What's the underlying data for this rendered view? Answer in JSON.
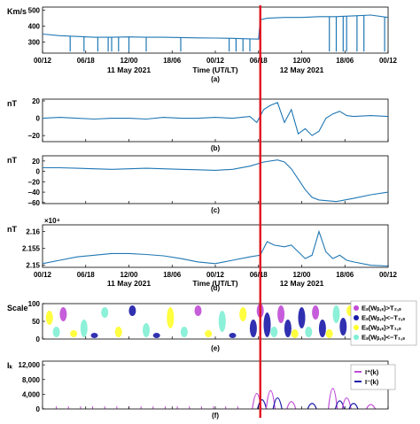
{
  "colors": {
    "line": "#1f77b4",
    "marker": "#e0141e",
    "legend_e1": "#c04bd6",
    "legend_e2": "#1a1aa8",
    "legend_e3": "#ffff2a",
    "legend_e4": "#7ff0d4"
  },
  "x_axis": {
    "time_ticks": [
      "00/12",
      "06/18",
      "12/00",
      "18/06",
      "00/12",
      "06/18",
      "12/00",
      "18/06",
      "00/12"
    ],
    "day_labels": [
      "11 May 2021",
      "12 May 2021"
    ],
    "time_label": "Time (UT/LT)"
  },
  "event_marker": {
    "position_label": "06/18"
  },
  "chart_data": [
    {
      "id": "a",
      "type": "line",
      "caption": "(a)",
      "ylabel": "Km/s",
      "ylim": [
        230,
        520
      ],
      "yticks": [
        "500",
        "400",
        "300"
      ],
      "ytick_values": [
        500,
        400,
        300
      ],
      "x": [
        0,
        0.05,
        0.1,
        0.15,
        0.2,
        0.25,
        0.3,
        0.35,
        0.4,
        0.45,
        0.5,
        0.55,
        0.6,
        0.625,
        0.63,
        0.65,
        0.7,
        0.75,
        0.8,
        0.85,
        0.9,
        0.95,
        1.0
      ],
      "values": [
        350,
        340,
        335,
        330,
        330,
        332,
        330,
        330,
        328,
        326,
        325,
        323,
        320,
        318,
        440,
        450,
        455,
        455,
        460,
        460,
        465,
        470,
        455
      ],
      "gap_drops": [
        0.08,
        0.12,
        0.16,
        0.19,
        0.2,
        0.22,
        0.25,
        0.3,
        0.4,
        0.54,
        0.56,
        0.58,
        0.6,
        0.83,
        0.85,
        0.87,
        0.88,
        0.91,
        0.93,
        0.99
      ],
      "drop_floor": 240
    },
    {
      "id": "b",
      "type": "line",
      "caption": "(b)",
      "ylabel": "nT",
      "ylim": [
        -27,
        22
      ],
      "yticks": [
        "20",
        "0",
        "−20"
      ],
      "ytick_values": [
        20,
        0,
        -20
      ],
      "x": [
        0,
        0.05,
        0.1,
        0.15,
        0.2,
        0.25,
        0.3,
        0.35,
        0.4,
        0.45,
        0.5,
        0.55,
        0.6,
        0.62,
        0.64,
        0.66,
        0.68,
        0.7,
        0.72,
        0.74,
        0.76,
        0.78,
        0.8,
        0.82,
        0.84,
        0.86,
        0.88,
        0.9,
        0.95,
        1.0
      ],
      "values": [
        0,
        1,
        0,
        -1,
        0,
        0,
        -1,
        1,
        0,
        0,
        1,
        0,
        2,
        -5,
        10,
        15,
        18,
        -5,
        10,
        -18,
        -12,
        -20,
        -15,
        0,
        5,
        8,
        3,
        2,
        3,
        2
      ]
    },
    {
      "id": "c",
      "type": "line",
      "caption": "(c)",
      "ylabel": "nT",
      "ylim": [
        -62,
        30
      ],
      "yticks": [
        "20",
        "0",
        "−20",
        "−40",
        "−60"
      ],
      "ytick_values": [
        20,
        0,
        -20,
        -40,
        -60
      ],
      "x": [
        0,
        0.05,
        0.1,
        0.15,
        0.2,
        0.25,
        0.3,
        0.35,
        0.4,
        0.45,
        0.5,
        0.55,
        0.6,
        0.64,
        0.68,
        0.7,
        0.72,
        0.74,
        0.76,
        0.78,
        0.8,
        0.85,
        0.9,
        0.95,
        1.0
      ],
      "values": [
        7,
        7,
        6,
        5,
        4,
        5,
        6,
        5,
        4,
        3,
        2,
        4,
        10,
        18,
        22,
        18,
        5,
        -15,
        -35,
        -50,
        -55,
        -58,
        -52,
        -45,
        -40
      ]
    },
    {
      "id": "d",
      "type": "line",
      "caption": "(d)",
      "ylabel": "nT",
      "ylim": [
        21494,
        21620
      ],
      "yticks": [
        "2.16",
        "2.155",
        "2.15"
      ],
      "ytick_values": [
        21600,
        21550,
        21500
      ],
      "scale_note": "×10⁴",
      "x": [
        0,
        0.05,
        0.1,
        0.15,
        0.2,
        0.25,
        0.3,
        0.35,
        0.4,
        0.45,
        0.5,
        0.55,
        0.6,
        0.63,
        0.65,
        0.67,
        0.7,
        0.72,
        0.74,
        0.76,
        0.78,
        0.8,
        0.82,
        0.84,
        0.86,
        0.88,
        0.9,
        0.95,
        1.0
      ],
      "values": [
        21505,
        21515,
        21525,
        21530,
        21535,
        21535,
        21532,
        21528,
        21520,
        21510,
        21505,
        21515,
        21525,
        21530,
        21570,
        21560,
        21555,
        21560,
        21540,
        21520,
        21530,
        21600,
        21540,
        21520,
        21530,
        21515,
        21510,
        21500,
        21498
      ]
    },
    {
      "id": "e",
      "type": "scatter",
      "caption": "(e)",
      "ylabel": "Scale",
      "ylim": [
        0,
        100
      ],
      "yticks": [
        "100",
        "50",
        "0"
      ],
      "ytick_values": [
        100,
        50,
        0
      ],
      "legend": [
        "Eₛ(Wᵦ,ₛ)>T₂,ₛ",
        "Eₛ(Wᵦ,ₛ)<−T₂,ₛ",
        "Eₛ(Wᵦ,ₛ)>T₁,ₛ",
        "Eₛ(Wᵦ,ₛ)<−T₁,ₛ"
      ],
      "blobs": [
        {
          "x": 0.02,
          "y": 60,
          "h": 40,
          "c": 2
        },
        {
          "x": 0.04,
          "y": 20,
          "h": 30,
          "c": 3
        },
        {
          "x": 0.06,
          "y": 70,
          "h": 40,
          "c": 0
        },
        {
          "x": 0.09,
          "y": 15,
          "h": 20,
          "c": 2
        },
        {
          "x": 0.12,
          "y": 30,
          "h": 50,
          "c": 3
        },
        {
          "x": 0.15,
          "y": 10,
          "h": 15,
          "c": 1
        },
        {
          "x": 0.18,
          "y": 75,
          "h": 30,
          "c": 3
        },
        {
          "x": 0.22,
          "y": 20,
          "h": 30,
          "c": 2
        },
        {
          "x": 0.26,
          "y": 80,
          "h": 30,
          "c": 1
        },
        {
          "x": 0.3,
          "y": 25,
          "h": 40,
          "c": 3
        },
        {
          "x": 0.33,
          "y": 10,
          "h": 15,
          "c": 1
        },
        {
          "x": 0.37,
          "y": 60,
          "h": 60,
          "c": 2
        },
        {
          "x": 0.41,
          "y": 20,
          "h": 30,
          "c": 3
        },
        {
          "x": 0.45,
          "y": 80,
          "h": 30,
          "c": 0
        },
        {
          "x": 0.48,
          "y": 15,
          "h": 20,
          "c": 2
        },
        {
          "x": 0.52,
          "y": 50,
          "h": 60,
          "c": 3
        },
        {
          "x": 0.55,
          "y": 10,
          "h": 15,
          "c": 1
        },
        {
          "x": 0.58,
          "y": 70,
          "h": 40,
          "c": 2
        },
        {
          "x": 0.61,
          "y": 30,
          "h": 50,
          "c": 1
        },
        {
          "x": 0.63,
          "y": 80,
          "h": 40,
          "c": 0
        },
        {
          "x": 0.65,
          "y": 40,
          "h": 70,
          "c": 1
        },
        {
          "x": 0.67,
          "y": 20,
          "h": 30,
          "c": 3
        },
        {
          "x": 0.69,
          "y": 70,
          "h": 50,
          "c": 0
        },
        {
          "x": 0.71,
          "y": 30,
          "h": 50,
          "c": 1
        },
        {
          "x": 0.73,
          "y": 15,
          "h": 25,
          "c": 2
        },
        {
          "x": 0.75,
          "y": 60,
          "h": 60,
          "c": 1
        },
        {
          "x": 0.77,
          "y": 20,
          "h": 30,
          "c": 3
        },
        {
          "x": 0.79,
          "y": 75,
          "h": 40,
          "c": 0
        },
        {
          "x": 0.81,
          "y": 30,
          "h": 50,
          "c": 1
        },
        {
          "x": 0.83,
          "y": 15,
          "h": 25,
          "c": 2
        },
        {
          "x": 0.85,
          "y": 70,
          "h": 50,
          "c": 3
        },
        {
          "x": 0.87,
          "y": 35,
          "h": 50,
          "c": 1
        },
        {
          "x": 0.89,
          "y": 80,
          "h": 30,
          "c": 2
        },
        {
          "x": 0.91,
          "y": 20,
          "h": 30,
          "c": 0
        },
        {
          "x": 0.93,
          "y": 60,
          "h": 50,
          "c": 1
        },
        {
          "x": 0.95,
          "y": 15,
          "h": 25,
          "c": 3
        },
        {
          "x": 0.97,
          "y": 70,
          "h": 40,
          "c": 1
        }
      ]
    },
    {
      "id": "f",
      "type": "line",
      "caption": "(f)",
      "ylabel": "Iₖ",
      "ylim": [
        0,
        13000
      ],
      "yticks": [
        "12,000",
        "8,000",
        "4,000",
        "0"
      ],
      "ytick_values": [
        12000,
        8000,
        4000,
        0
      ],
      "legend": [
        "I⁺(k)",
        "I⁻(k)"
      ],
      "spikes": [
        {
          "x": 0.62,
          "v": 4200,
          "s": 0
        },
        {
          "x": 0.635,
          "v": 2500,
          "s": 1
        },
        {
          "x": 0.66,
          "v": 5000,
          "s": 0
        },
        {
          "x": 0.68,
          "v": 3000,
          "s": 1
        },
        {
          "x": 0.72,
          "v": 2000,
          "s": 0
        },
        {
          "x": 0.78,
          "v": 1500,
          "s": 1
        },
        {
          "x": 0.84,
          "v": 5600,
          "s": 0
        },
        {
          "x": 0.86,
          "v": 2200,
          "s": 1
        },
        {
          "x": 0.88,
          "v": 3000,
          "s": 0
        },
        {
          "x": 0.9,
          "v": 1500,
          "s": 1
        },
        {
          "x": 0.95,
          "v": 1200,
          "s": 0
        }
      ]
    }
  ]
}
